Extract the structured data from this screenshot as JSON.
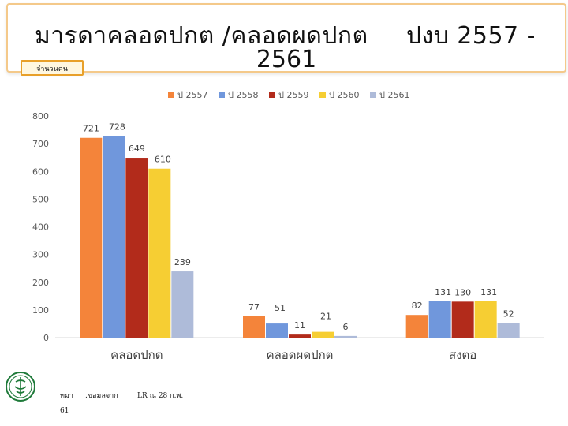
{
  "title": {
    "line1": "มารดาคลอดปกต /คลอดผดปกต",
    "line1_right": "ปงบ 2557 -",
    "line2": "2561"
  },
  "unit_label": "จำนวนคน",
  "footer": {
    "source1": "ทมา",
    "source2": ".ขอมลจาก",
    "source3": "LR ณ 28 ก.พ.",
    "source4": "61"
  },
  "colors": {
    "banner_border": "#f4c98a",
    "unit_box_border": "#e8a02a"
  },
  "chart_data": {
    "type": "bar",
    "categories": [
      "คลอดปกต",
      "คลอดผดปกต",
      "สงตอ"
    ],
    "series": [
      {
        "name": "ป 2557",
        "color": "#f4843a",
        "values": [
          721,
          77,
          82
        ]
      },
      {
        "name": "ป 2558",
        "color": "#7097dc",
        "values": [
          728,
          51,
          131
        ]
      },
      {
        "name": "ป 2559",
        "color": "#b22b1b",
        "values": [
          649,
          11,
          130
        ]
      },
      {
        "name": "ป 2560",
        "color": "#f6ce33",
        "values": [
          610,
          21,
          131
        ]
      },
      {
        "name": "ป 2561",
        "color": "#aebbd9",
        "values": [
          239,
          6,
          52
        ]
      }
    ],
    "yticks": [
      0,
      100,
      200,
      300,
      400,
      500,
      600,
      700,
      800
    ],
    "ylim": [
      0,
      800
    ],
    "grid": false,
    "legend": "top"
  }
}
